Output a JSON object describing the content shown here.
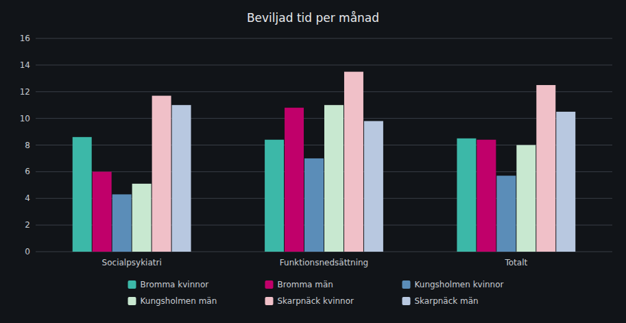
{
  "chart_data": {
    "type": "bar",
    "title": "Beviljad tid per månad",
    "categories": [
      "Socialpsykiatri",
      "Funktionsnedsättning",
      "Totalt"
    ],
    "series": [
      {
        "name": "Bromma kvinnor",
        "color": "#3cb8a8",
        "values": [
          8.6,
          8.4,
          8.5
        ]
      },
      {
        "name": "Bromma män",
        "color": "#c0006a",
        "values": [
          6.0,
          10.8,
          8.4
        ]
      },
      {
        "name": "Kungsholmen kvinnor",
        "color": "#5b8db8",
        "values": [
          4.3,
          7.0,
          5.7
        ]
      },
      {
        "name": "Kungsholmen män",
        "color": "#c8e8d0",
        "values": [
          5.1,
          11.0,
          8.0
        ]
      },
      {
        "name": "Skarpnäck kvinnor",
        "color": "#f0c0c8",
        "values": [
          11.7,
          13.5,
          12.5
        ]
      },
      {
        "name": "Skarpnäck män",
        "color": "#b8c8e0",
        "values": [
          11.0,
          9.8,
          10.5
        ]
      }
    ],
    "ylim": [
      0,
      16
    ],
    "yticks": [
      0,
      2,
      4,
      6,
      8,
      10,
      12,
      14,
      16
    ],
    "grid": true,
    "legend": "bottom"
  }
}
